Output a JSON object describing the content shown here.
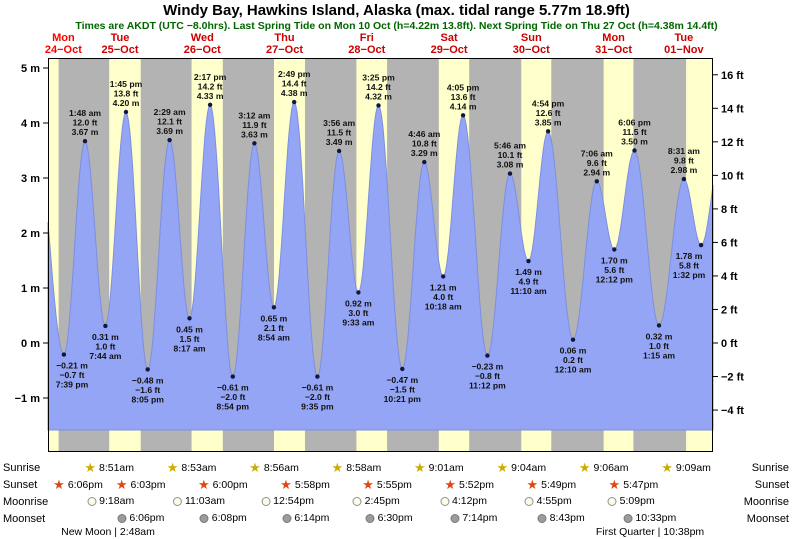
{
  "title": "Windy Bay, Hawkins Island, Alaska (max. tidal range 5.77m 18.9ft)",
  "subtitle": "Times are AKDT (UTC −8.0hrs). Last Spring Tide on Mon 10 Oct (h=4.22m 13.8ft). Next Spring Tide on Thu 27 Oct (h=4.38m 14.4ft)",
  "colors": {
    "day_band": "#ffffcc",
    "night_band": "#b3b3b3",
    "tide_fill": "#95a5f5",
    "tide_stroke": "#7d8fe0",
    "dot": "#101840",
    "today_label": "#ff0000",
    "day_label": "#cc0000",
    "subtitle": "#006600",
    "sunrise_star": "#ccac00",
    "sunset_star": "#dd4814",
    "moonrise_fill": "#fcfce8",
    "moonset_fill": "#9c9c9c"
  },
  "chart_data": {
    "type": "area",
    "title": "Windy Bay, Hawkins Island, Alaska tide curve",
    "ylabel_left": "meters",
    "ylabel_right": "feet",
    "ylim_m": [
      -2.0,
      5.2
    ],
    "grid": false,
    "time_start_h": 15.0,
    "time_end_h": 209.0,
    "y_ticks_m": [
      {
        "v": 5,
        "label": "5 m"
      },
      {
        "v": 4,
        "label": "4 m"
      },
      {
        "v": 3,
        "label": "3 m"
      },
      {
        "v": 2,
        "label": "2 m"
      },
      {
        "v": 1,
        "label": "1 m"
      },
      {
        "v": 0,
        "label": "0 m"
      },
      {
        "v": -1,
        "label": "−1 m"
      }
    ],
    "y_ticks_ft": [
      {
        "v": 16,
        "label": "16 ft"
      },
      {
        "v": 14,
        "label": "14 ft"
      },
      {
        "v": 12,
        "label": "12 ft"
      },
      {
        "v": 10,
        "label": "10 ft"
      },
      {
        "v": 8,
        "label": "8 ft"
      },
      {
        "v": 6,
        "label": "6 ft"
      },
      {
        "v": 4,
        "label": "4 ft"
      },
      {
        "v": 2,
        "label": "2 ft"
      },
      {
        "v": 0,
        "label": "0 ft"
      },
      {
        "v": -2,
        "label": "−2 ft"
      },
      {
        "v": -4,
        "label": "−4 ft"
      }
    ],
    "days": [
      {
        "day": "Mon",
        "date": "24−Oct",
        "today": true
      },
      {
        "day": "Tue",
        "date": "25−Oct"
      },
      {
        "day": "Wed",
        "date": "26−Oct"
      },
      {
        "day": "Thu",
        "date": "27−Oct"
      },
      {
        "day": "Fri",
        "date": "28−Oct"
      },
      {
        "day": "Sat",
        "date": "29−Oct"
      },
      {
        "day": "Sun",
        "date": "30−Oct"
      },
      {
        "day": "Mon",
        "date": "31−Oct"
      },
      {
        "day": "Tue",
        "date": "01−Nov"
      }
    ],
    "sun": {
      "sunset_h": [
        18.1,
        42.05,
        66.0,
        89.967,
        113.917,
        137.867,
        161.817,
        185.783
      ],
      "sunrise_h": [
        32.85,
        56.883,
        80.933,
        104.967,
        129.017,
        153.067,
        177.1,
        201.15
      ]
    },
    "tide_events": [
      {
        "t": 11.0,
        "m": 4.1,
        "type": "high",
        "offscreen": true
      },
      {
        "t": 19.65,
        "m": -0.21,
        "type": "low",
        "labels": [
          "−0.21 m",
          "−0.7 ft",
          "7:39 pm"
        ]
      },
      {
        "t": 25.8,
        "m": 3.67,
        "type": "high",
        "labels": [
          "1:48 am",
          "12.0 ft",
          "3.67 m"
        ]
      },
      {
        "t": 31.733,
        "m": 0.31,
        "type": "low",
        "labels": [
          "0.31 m",
          "1.0 ft",
          "7:44 am"
        ]
      },
      {
        "t": 37.75,
        "m": 4.2,
        "type": "high",
        "labels": [
          "1:45 pm",
          "13.8 ft",
          "4.20 m"
        ]
      },
      {
        "t": 44.083,
        "m": -0.48,
        "type": "low",
        "labels": [
          "−0.48 m",
          "−1.6 ft",
          "8:05 pm"
        ]
      },
      {
        "t": 50.483,
        "m": 3.69,
        "type": "high",
        "labels": [
          "2:29 am",
          "12.1 ft",
          "3.69 m"
        ]
      },
      {
        "t": 56.283,
        "m": 0.45,
        "type": "low",
        "labels": [
          "0.45 m",
          "1.5 ft",
          "8:17 am"
        ]
      },
      {
        "t": 62.283,
        "m": 4.33,
        "type": "high",
        "labels": [
          "2:17 pm",
          "14.2 ft",
          "4.33 m"
        ]
      },
      {
        "t": 68.9,
        "m": -0.61,
        "type": "low",
        "labels": [
          "−0.61 m",
          "−2.0 ft",
          "8:54 pm"
        ]
      },
      {
        "t": 75.2,
        "m": 3.63,
        "type": "high",
        "labels": [
          "3:12 am",
          "11.9 ft",
          "3.63 m"
        ]
      },
      {
        "t": 80.9,
        "m": 0.65,
        "type": "low",
        "labels": [
          "0.65 m",
          "2.1 ft",
          "8:54 am"
        ]
      },
      {
        "t": 86.817,
        "m": 4.38,
        "type": "high",
        "labels": [
          "2:49 pm",
          "14.4 ft",
          "4.38 m"
        ]
      },
      {
        "t": 93.583,
        "m": -0.61,
        "type": "low",
        "labels": [
          "−0.61 m",
          "−2.0 ft",
          "9:35 pm"
        ]
      },
      {
        "t": 99.933,
        "m": 3.49,
        "type": "high",
        "labels": [
          "3:56 am",
          "11.5 ft",
          "3.49 m"
        ]
      },
      {
        "t": 105.55,
        "m": 0.92,
        "type": "low",
        "labels": [
          "0.92 m",
          "3.0 ft",
          "9:33 am"
        ]
      },
      {
        "t": 111.417,
        "m": 4.32,
        "type": "high",
        "labels": [
          "3:25 pm",
          "14.2 ft",
          "4.32 m"
        ]
      },
      {
        "t": 118.35,
        "m": -0.47,
        "type": "low",
        "labels": [
          "−0.47 m",
          "−1.5 ft",
          "10:21 pm"
        ]
      },
      {
        "t": 124.767,
        "m": 3.29,
        "type": "high",
        "labels": [
          "4:46 am",
          "10.8 ft",
          "3.29 m"
        ]
      },
      {
        "t": 130.3,
        "m": 1.21,
        "type": "low",
        "labels": [
          "1.21 m",
          "4.0 ft",
          "10:18 am"
        ]
      },
      {
        "t": 136.083,
        "m": 4.14,
        "type": "high",
        "labels": [
          "4:05 pm",
          "13.6 ft",
          "4.14 m"
        ]
      },
      {
        "t": 143.2,
        "m": -0.23,
        "type": "low",
        "labels": [
          "−0.23 m",
          "−0.8 ft",
          "11:12 pm"
        ]
      },
      {
        "t": 149.767,
        "m": 3.08,
        "type": "high",
        "labels": [
          "5:46 am",
          "10.1 ft",
          "3.08 m"
        ]
      },
      {
        "t": 155.167,
        "m": 1.49,
        "type": "low",
        "labels": [
          "1.49 m",
          "4.9 ft",
          "11:10 am"
        ]
      },
      {
        "t": 160.9,
        "m": 3.85,
        "type": "high",
        "labels": [
          "4:54 pm",
          "12.6 ft",
          "3.85 m"
        ]
      },
      {
        "t": 168.167,
        "m": 0.06,
        "type": "low",
        "labels": [
          "0.06 m",
          "0.2 ft",
          "12:10 am"
        ]
      },
      {
        "t": 175.1,
        "m": 2.94,
        "type": "high",
        "labels": [
          "7:06 am",
          "9.6 ft",
          "2.94 m"
        ]
      },
      {
        "t": 180.2,
        "m": 1.7,
        "type": "low",
        "labels": [
          "1.70 m",
          "5.6 ft",
          "12:12 pm"
        ]
      },
      {
        "t": 186.1,
        "m": 3.5,
        "type": "high",
        "labels": [
          "6:06 pm",
          "11.5 ft",
          "3.50 m"
        ]
      },
      {
        "t": 193.25,
        "m": 0.32,
        "type": "low",
        "labels": [
          "0.32 m",
          "1.0 ft",
          "1:15 am"
        ]
      },
      {
        "t": 200.517,
        "m": 2.98,
        "type": "high",
        "labels": [
          "8:31 am",
          "9.8 ft",
          "2.98 m"
        ]
      },
      {
        "t": 205.533,
        "m": 1.78,
        "type": "low",
        "labels": [
          "1.78 m",
          "5.8 ft",
          "1:32 pm"
        ]
      },
      {
        "t": 211.7,
        "m": 3.6,
        "type": "high",
        "offscreen": true
      }
    ]
  },
  "astro": {
    "rows": [
      {
        "id": "sunrise",
        "label": "Sunrise",
        "icon": "star",
        "icon_color": "#ccac00",
        "events": [
          {
            "label": "8:51am",
            "t": 32.85
          },
          {
            "label": "8:53am",
            "t": 56.883
          },
          {
            "label": "8:56am",
            "t": 80.933
          },
          {
            "label": "8:58am",
            "t": 104.967
          },
          {
            "label": "9:01am",
            "t": 129.017
          },
          {
            "label": "9:04am",
            "t": 153.067
          },
          {
            "label": "9:06am",
            "t": 177.1
          },
          {
            "label": "9:09am",
            "t": 201.15
          }
        ]
      },
      {
        "id": "sunset",
        "label": "Sunset",
        "icon": "star",
        "icon_color": "#dd4814",
        "events": [
          {
            "label": "6:06pm",
            "t": 18.1
          },
          {
            "label": "6:03pm",
            "t": 42.05
          },
          {
            "label": "6:00pm",
            "t": 66.0
          },
          {
            "label": "5:58pm",
            "t": 89.967
          },
          {
            "label": "5:55pm",
            "t": 113.917
          },
          {
            "label": "5:52pm",
            "t": 137.867
          },
          {
            "label": "5:49pm",
            "t": 161.817
          },
          {
            "label": "5:47pm",
            "t": 185.783
          }
        ]
      },
      {
        "id": "moonrise",
        "label": "Moonrise",
        "icon": "moon-rise",
        "icon_color": "#fcfce8",
        "events": [
          {
            "label": "9:18am",
            "t": 33.3
          },
          {
            "label": "11:03am",
            "t": 59.05
          },
          {
            "label": "12:54pm",
            "t": 84.9
          },
          {
            "label": "2:45pm",
            "t": 110.75
          },
          {
            "label": "4:12pm",
            "t": 136.2
          },
          {
            "label": "4:55pm",
            "t": 160.917
          },
          {
            "label": "5:09pm",
            "t": 185.15
          }
        ]
      },
      {
        "id": "moonset",
        "label": "Moonset",
        "icon": "moon-set",
        "icon_color": "#9c9c9c",
        "events": [
          {
            "label": "6:06pm",
            "t": 42.1
          },
          {
            "label": "6:08pm",
            "t": 66.133
          },
          {
            "label": "6:14pm",
            "t": 90.233
          },
          {
            "label": "6:30pm",
            "t": 114.5
          },
          {
            "label": "7:14pm",
            "t": 139.233
          },
          {
            "label": "8:43pm",
            "t": 164.717
          },
          {
            "label": "10:33pm",
            "t": 190.55
          }
        ]
      }
    ],
    "new_moon": {
      "text": "New Moon | 2:48am",
      "t": 26.8
    },
    "first_quarter": {
      "text": "First Quarter | 10:38pm",
      "t": 190.633
    }
  }
}
